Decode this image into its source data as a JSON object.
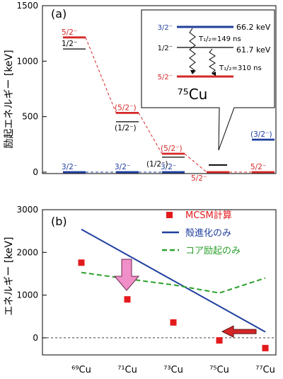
{
  "chart_data": [
    {
      "panel_label": "(a)",
      "type": "level-scheme",
      "ylabel": "励起エネルギー [keV]",
      "ylim": [
        0,
        1500
      ],
      "yticks": [
        0,
        500,
        1000,
        1500
      ],
      "categories": [
        "69Cu",
        "71Cu",
        "73Cu",
        "75Cu",
        "77Cu"
      ],
      "levels": [
        {
          "nucleus": "69Cu",
          "energy": 0,
          "label": "3/2⁻",
          "color": "#1f3f9e"
        },
        {
          "nucleus": "69Cu",
          "energy": 1214,
          "label": "5/2⁻",
          "color": "#d62728"
        },
        {
          "nucleus": "69Cu",
          "energy": 1110,
          "label": "1/2⁻",
          "color": "#000000"
        },
        {
          "nucleus": "71Cu",
          "energy": 0,
          "label": "3/2⁻",
          "color": "#1f3f9e"
        },
        {
          "nucleus": "71Cu",
          "energy": 534,
          "label": "(5/2⁻)",
          "color": "#d62728"
        },
        {
          "nucleus": "71Cu",
          "energy": 454,
          "label": "(1/2⁻)",
          "color": "#000000"
        },
        {
          "nucleus": "73Cu",
          "energy": 0,
          "label": "3/2⁻",
          "color": "#1f3f9e"
        },
        {
          "nucleus": "73Cu",
          "energy": 166,
          "label": "(5/2⁻)",
          "color": "#d62728"
        },
        {
          "nucleus": "73Cu",
          "energy": 135,
          "label": "(1/2⁻)",
          "color": "#000000"
        },
        {
          "nucleus": "75Cu",
          "energy": 0,
          "label": "5/2⁻",
          "color": "#d62728"
        },
        {
          "nucleus": "75Cu",
          "energy": 62,
          "label": "",
          "color": "#000000"
        },
        {
          "nucleus": "75Cu",
          "energy": 66,
          "label": "",
          "color": "#000000"
        },
        {
          "nucleus": "77Cu",
          "energy": 0,
          "label": "5/2⁻",
          "color": "#d62728"
        },
        {
          "nucleus": "77Cu",
          "energy": 293,
          "label": "(3/2⁻)",
          "color": "#1f3f9e"
        }
      ],
      "inset": {
        "nucleus": "⁷⁵Cu",
        "levels": [
          {
            "spin": "3/2⁻",
            "energy_label": "66.2 keV",
            "color": "#1f3f9e"
          },
          {
            "spin": "1/2⁻",
            "energy_label": "61.7 keV",
            "color": "#000000"
          },
          {
            "spin": "5/2⁻",
            "energy_label": "",
            "color": "#d62728"
          }
        ],
        "halflives": [
          "T₁/₂=149 ns",
          "T₁/₂=310 ns"
        ]
      }
    },
    {
      "panel_label": "(b)",
      "type": "line",
      "ylabel": "エネルギー [keV]",
      "ylim": [
        -400,
        3000
      ],
      "yticks": [
        0,
        1000,
        2000,
        3000
      ],
      "categories": [
        "⁶⁹Cu",
        "⁷¹Cu",
        "⁷³Cu",
        "⁷⁵Cu",
        "⁷⁷Cu"
      ],
      "legend_position": "top-right",
      "series": [
        {
          "name": "MCSM計算",
          "style": "scatter",
          "color": "#e31a1c",
          "values": [
            1760,
            900,
            360,
            -60,
            -240
          ]
        },
        {
          "name": "殻進化のみ",
          "style": "solid",
          "color": "#1f3f9e",
          "values": [
            2540,
            1940,
            1340,
            740,
            140
          ]
        },
        {
          "name": "コア励起のみ",
          "style": "dashed",
          "color": "#2ca02c",
          "values": [
            1530,
            1380,
            1240,
            1050,
            1400
          ]
        }
      ]
    }
  ]
}
